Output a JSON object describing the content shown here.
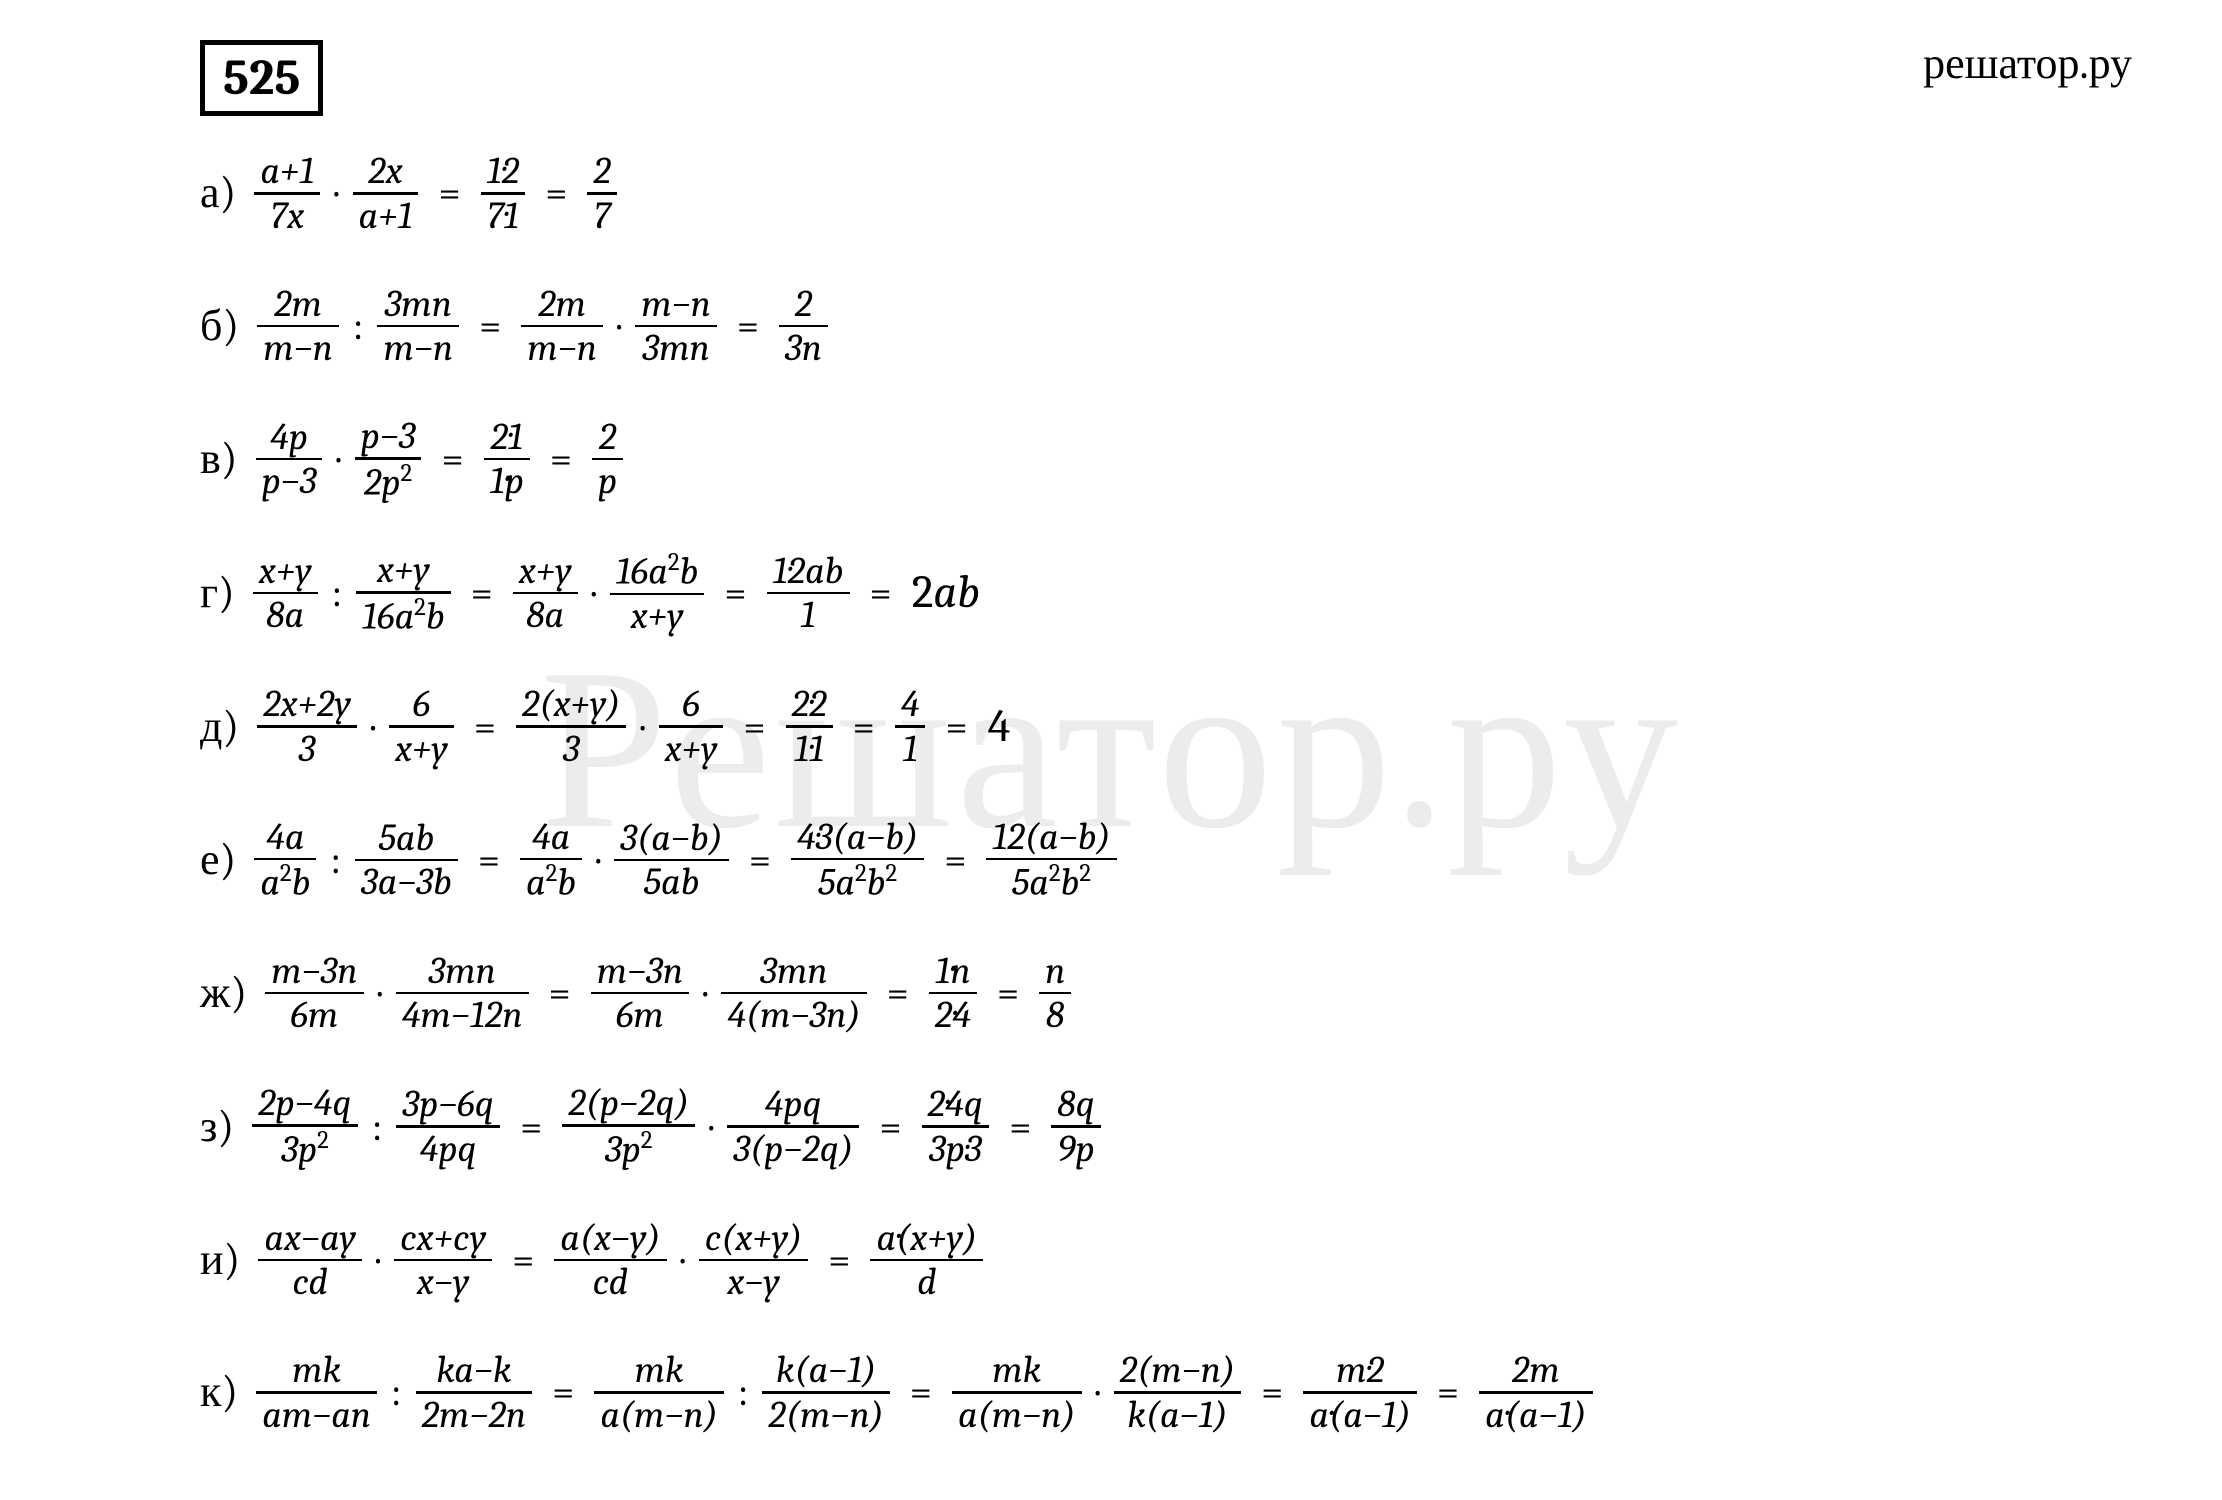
{
  "site_label": "решатор.ру",
  "watermark": "Решатор.ру",
  "problem_number": "525",
  "colors": {
    "background": "#ffffff",
    "text": "#000000",
    "rule": "#000000",
    "watermark_opacity": 0.07
  },
  "typography": {
    "base_font": "Cambria / Georgia / Times New Roman serif",
    "problem_number_fontsize_pt": 38,
    "row_label_fontsize_pt": 33,
    "fraction_fontsize_pt": 28,
    "site_label_fontsize_pt": 33,
    "watermark_fontsize_pt": 170
  },
  "rows": [
    {
      "label": "а)",
      "terms": [
        {
          "type": "frac",
          "num": "a+1",
          "den": "7x"
        },
        {
          "type": "op",
          "v": "·"
        },
        {
          "type": "frac",
          "num": "2x",
          "den": "a+1"
        },
        {
          "type": "eq"
        },
        {
          "type": "frac",
          "num": "1·2",
          "den": "7·1"
        },
        {
          "type": "eq"
        },
        {
          "type": "frac",
          "num": "2",
          "den": "7"
        }
      ]
    },
    {
      "label": "б)",
      "terms": [
        {
          "type": "frac",
          "num": "2m",
          "den": "m−n"
        },
        {
          "type": "op",
          "v": ":"
        },
        {
          "type": "frac",
          "num": "3mn",
          "den": "m−n"
        },
        {
          "type": "eq"
        },
        {
          "type": "frac",
          "num": "2m",
          "den": "m−n"
        },
        {
          "type": "op",
          "v": "·"
        },
        {
          "type": "frac",
          "num": "m−n",
          "den": "3mn"
        },
        {
          "type": "eq"
        },
        {
          "type": "frac",
          "num": "2",
          "den": "3n"
        }
      ]
    },
    {
      "label": "в)",
      "terms": [
        {
          "type": "frac",
          "num": "4p",
          "den": "p−3"
        },
        {
          "type": "op",
          "v": "·"
        },
        {
          "type": "frac",
          "num": "p−3",
          "den": "2p²"
        },
        {
          "type": "eq"
        },
        {
          "type": "frac",
          "num": "2·1",
          "den": "1·p"
        },
        {
          "type": "eq"
        },
        {
          "type": "frac",
          "num": "2",
          "den": "p"
        }
      ]
    },
    {
      "label": "г)",
      "terms": [
        {
          "type": "frac",
          "num": "x+y",
          "den": "8a"
        },
        {
          "type": "op",
          "v": ":"
        },
        {
          "type": "frac",
          "num": "x+y",
          "den": "16a²b"
        },
        {
          "type": "eq"
        },
        {
          "type": "frac",
          "num": "x+y",
          "den": "8a"
        },
        {
          "type": "op",
          "v": "·"
        },
        {
          "type": "frac",
          "num": "16a²b",
          "den": "x+y"
        },
        {
          "type": "eq"
        },
        {
          "type": "frac",
          "num": "1·2ab",
          "den": "1"
        },
        {
          "type": "eq"
        },
        {
          "type": "plain",
          "v": "2ab"
        }
      ]
    },
    {
      "label": "д)",
      "terms": [
        {
          "type": "frac",
          "num": "2x+2y",
          "den": "3"
        },
        {
          "type": "op",
          "v": "·"
        },
        {
          "type": "frac",
          "num": "6",
          "den": "x+y"
        },
        {
          "type": "eq"
        },
        {
          "type": "frac",
          "num": "2(x+y)",
          "den": "3"
        },
        {
          "type": "op",
          "v": "·"
        },
        {
          "type": "frac",
          "num": "6",
          "den": "x+y"
        },
        {
          "type": "eq"
        },
        {
          "type": "frac",
          "num": "2·2",
          "den": "1·1"
        },
        {
          "type": "eq"
        },
        {
          "type": "frac",
          "num": "4",
          "den": "1"
        },
        {
          "type": "eq"
        },
        {
          "type": "plain",
          "v": "4"
        }
      ]
    },
    {
      "label": "е)",
      "terms": [
        {
          "type": "frac",
          "num": "4a",
          "den": "a²b"
        },
        {
          "type": "op",
          "v": ":"
        },
        {
          "type": "frac",
          "num": "5ab",
          "den": "3a−3b"
        },
        {
          "type": "eq"
        },
        {
          "type": "frac",
          "num": "4a",
          "den": "a²b"
        },
        {
          "type": "op",
          "v": "·"
        },
        {
          "type": "frac",
          "num": "3(a−b)",
          "den": "5ab"
        },
        {
          "type": "eq"
        },
        {
          "type": "frac",
          "num": "4·3(a−b)",
          "den": "5a²b²"
        },
        {
          "type": "eq"
        },
        {
          "type": "frac",
          "num": "12(a−b)",
          "den": "5a²b²"
        }
      ]
    },
    {
      "label": "ж)",
      "terms": [
        {
          "type": "frac",
          "num": "m−3n",
          "den": "6m"
        },
        {
          "type": "op",
          "v": "·"
        },
        {
          "type": "frac",
          "num": "3mn",
          "den": "4m−12n"
        },
        {
          "type": "eq"
        },
        {
          "type": "frac",
          "num": "m−3n",
          "den": "6m"
        },
        {
          "type": "op",
          "v": "·"
        },
        {
          "type": "frac",
          "num": "3mn",
          "den": "4(m−3n)"
        },
        {
          "type": "eq"
        },
        {
          "type": "frac",
          "num": "1·n",
          "den": "2·4"
        },
        {
          "type": "eq"
        },
        {
          "type": "frac",
          "num": "n",
          "den": "8"
        }
      ]
    },
    {
      "label": "з)",
      "terms": [
        {
          "type": "frac",
          "num": "2p−4q",
          "den": "3p²"
        },
        {
          "type": "op",
          "v": ":"
        },
        {
          "type": "frac",
          "num": "3p−6q",
          "den": "4pq"
        },
        {
          "type": "eq"
        },
        {
          "type": "frac",
          "num": "2(p−2q)",
          "den": "3p²"
        },
        {
          "type": "op",
          "v": "·"
        },
        {
          "type": "frac",
          "num": "4pq",
          "den": "3(p−2q)"
        },
        {
          "type": "eq"
        },
        {
          "type": "frac",
          "num": "2·4q",
          "den": "3p·3"
        },
        {
          "type": "eq"
        },
        {
          "type": "frac",
          "num": "8q",
          "den": "9p"
        }
      ]
    },
    {
      "label": "и)",
      "terms": [
        {
          "type": "frac",
          "num": "ax−ay",
          "den": "cd"
        },
        {
          "type": "op",
          "v": "·"
        },
        {
          "type": "frac",
          "num": "cx+cy",
          "den": "x−y"
        },
        {
          "type": "eq"
        },
        {
          "type": "frac",
          "num": "a(x−y)",
          "den": "cd"
        },
        {
          "type": "op",
          "v": "·"
        },
        {
          "type": "frac",
          "num": "c(x+y)",
          "den": "x−y"
        },
        {
          "type": "eq"
        },
        {
          "type": "frac",
          "num": "a·(x+y)",
          "den": "d"
        }
      ]
    },
    {
      "label": "к)",
      "terms": [
        {
          "type": "frac",
          "num": "mk",
          "den": "am−an"
        },
        {
          "type": "op",
          "v": ":"
        },
        {
          "type": "frac",
          "num": "ka−k",
          "den": "2m−2n"
        },
        {
          "type": "eq"
        },
        {
          "type": "frac",
          "num": "mk",
          "den": "a(m−n)"
        },
        {
          "type": "op",
          "v": ":"
        },
        {
          "type": "frac",
          "num": "k(a−1)",
          "den": "2(m−n)"
        },
        {
          "type": "eq"
        },
        {
          "type": "frac",
          "num": "mk",
          "den": "a(m−n)"
        },
        {
          "type": "op",
          "v": "·"
        },
        {
          "type": "frac",
          "num": "2(m−n)",
          "den": "k(a−1)"
        },
        {
          "type": "eq"
        },
        {
          "type": "frac",
          "num": "m·2",
          "den": "a·(a−1)"
        },
        {
          "type": "eq"
        },
        {
          "type": "frac",
          "num": "2m",
          "den": "a·(a−1)"
        }
      ]
    }
  ]
}
